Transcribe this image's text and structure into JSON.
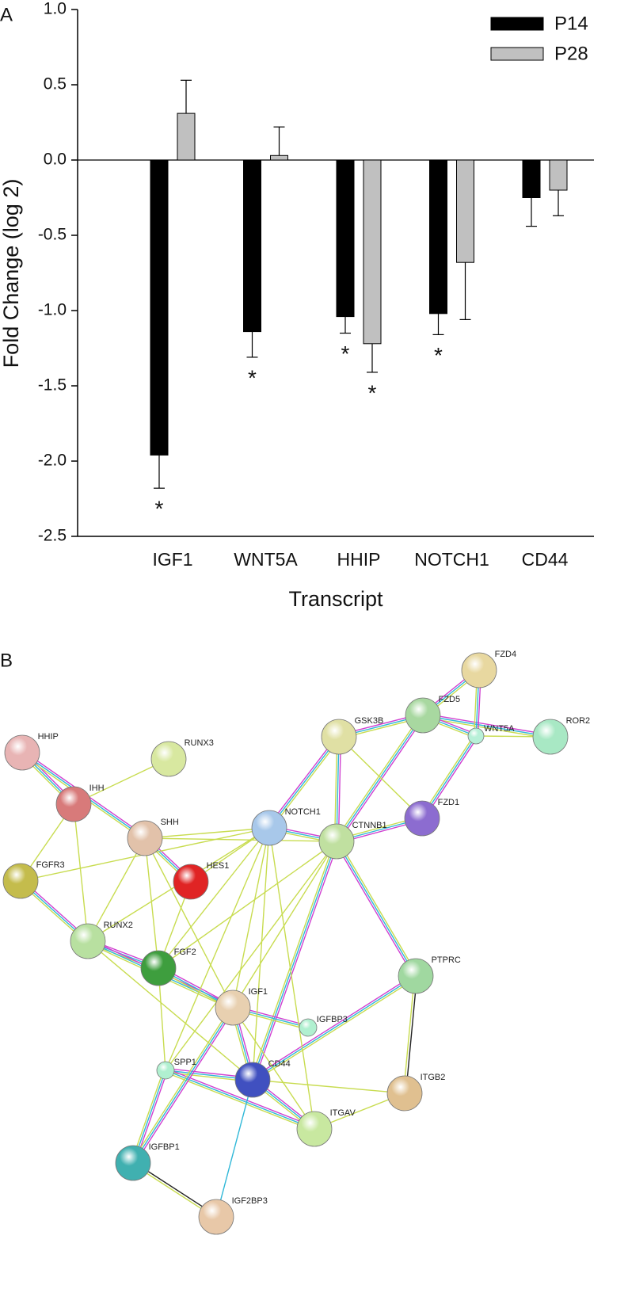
{
  "chart_data": {
    "type": "bar",
    "panel": "A",
    "x_label": "Transcript",
    "y_label": "Fold Change (log 2)",
    "categories": [
      "IGF1",
      "WNT5A",
      "HHIP",
      "NOTCH1",
      "CD44"
    ],
    "series": [
      {
        "name": "P14",
        "color": "#000000",
        "values": [
          -1.96,
          -1.14,
          -1.04,
          -1.02,
          -0.25
        ],
        "errors": [
          0.22,
          0.17,
          0.11,
          0.14,
          0.19
        ],
        "significance": [
          "*",
          "*",
          "*",
          "*",
          null
        ]
      },
      {
        "name": "P28",
        "color": "#c0c0c0",
        "values": [
          0.31,
          0.03,
          -1.22,
          -0.68,
          -0.2
        ],
        "errors": [
          0.22,
          0.19,
          0.19,
          0.38,
          0.17
        ],
        "significance": [
          null,
          null,
          "*",
          null,
          null
        ]
      }
    ],
    "ylim": [
      -2.5,
      1.0
    ],
    "yticks": [
      {
        "value": 1.0,
        "label": "1.0"
      },
      {
        "value": 0.5,
        "label": "0.5"
      },
      {
        "value": 0,
        "label": "0.0"
      },
      {
        "value": -0.5,
        "label": "-0.5"
      },
      {
        "value": -1.0,
        "label": "-1.0"
      },
      {
        "value": -1.5,
        "label": "-1.5"
      },
      {
        "value": -2.0,
        "label": "-2.0"
      },
      {
        "value": -2.5,
        "label": "-2.5"
      }
    ],
    "legend": "upper right"
  },
  "network": {
    "panel": "B",
    "nodes": [
      {
        "label": "HHIP",
        "color": "#e8b4b4"
      },
      {
        "label": "IHH",
        "color": "#d87a7a"
      },
      {
        "label": "RUNX3",
        "color": "#d8e8a0"
      },
      {
        "label": "SHH",
        "color": "#e2c2aa"
      },
      {
        "label": "FGFR3",
        "color": "#c4bc4c"
      },
      {
        "label": "HES1",
        "color": "#e02424"
      },
      {
        "label": "RUNX2",
        "color": "#b8e0a0"
      },
      {
        "label": "FGF2",
        "color": "#3e9e3e"
      },
      {
        "label": "NOTCH1",
        "color": "#a8c8ea"
      },
      {
        "label": "GSK3B",
        "color": "#e0e0a4"
      },
      {
        "label": "FZD5",
        "color": "#a8d8a0"
      },
      {
        "label": "FZD4",
        "color": "#e8d8a0"
      },
      {
        "label": "ROR2",
        "color": "#a8e8c4"
      },
      {
        "label": "WNT5A",
        "color": "#b8f0d8"
      },
      {
        "label": "FZD1",
        "color": "#8c6cd0"
      },
      {
        "label": "CTNNB1",
        "color": "#c0e0a0"
      },
      {
        "label": "PTPRC",
        "color": "#a0d8a0"
      },
      {
        "label": "IGF1",
        "color": "#e8d0b0"
      },
      {
        "label": "IGFBP3",
        "color": "#b0f0d0"
      },
      {
        "label": "SPP1",
        "color": "#b0f0d0"
      },
      {
        "label": "CD44",
        "color": "#4050c0"
      },
      {
        "label": "ITGB2",
        "color": "#e0c090"
      },
      {
        "label": "ITGAV",
        "color": "#c8e8a0"
      },
      {
        "label": "IGFBP1",
        "color": "#40b0b0"
      },
      {
        "label": "IGF2BP3",
        "color": "#e8c8a8"
      }
    ]
  }
}
